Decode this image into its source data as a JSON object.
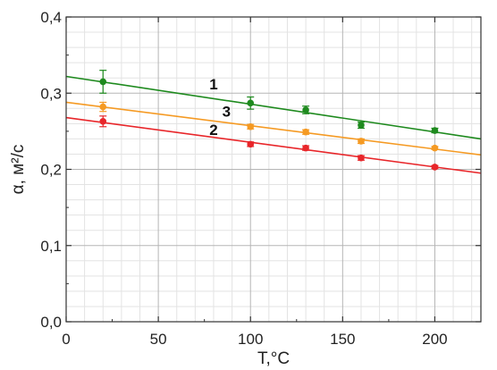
{
  "chart_data": {
    "type": "scatter",
    "xlabel": "T,°C",
    "ylabel": "α, м²/с",
    "xlim": [
      0,
      225
    ],
    "ylim": [
      0,
      0.4
    ],
    "x_ticks": [
      0,
      50,
      100,
      150,
      200
    ],
    "x_tick_labels": [
      "0",
      "50",
      "100",
      "150",
      "200"
    ],
    "y_ticks": [
      0,
      0.1,
      0.2,
      0.3,
      0.4
    ],
    "y_tick_labels": [
      "0,0",
      "0,1",
      "0,2",
      "0,3",
      "0,4"
    ],
    "grid": true,
    "series": [
      {
        "name": "1",
        "color": "#1e8a1e",
        "x": [
          20,
          100,
          130,
          160,
          200
        ],
        "y": [
          0.315,
          0.287,
          0.278,
          0.258,
          0.251
        ],
        "err": [
          0.015,
          0.008,
          0.005,
          0.004,
          0.003
        ],
        "fit": {
          "x": [
            0,
            225
          ],
          "y": [
            0.322,
            0.24
          ]
        },
        "label_at": [
          80,
          0.305
        ]
      },
      {
        "name": "2",
        "color": "#e8262a",
        "x": [
          20,
          100,
          130,
          160,
          200
        ],
        "y": [
          0.263,
          0.233,
          0.228,
          0.215,
          0.203
        ],
        "err": [
          0.007,
          0.003,
          0.003,
          0.003,
          0.002
        ],
        "fit": {
          "x": [
            0,
            225
          ],
          "y": [
            0.268,
            0.195
          ]
        },
        "label_at": [
          80,
          0.245
        ]
      },
      {
        "name": "3",
        "color": "#f59a23",
        "x": [
          20,
          100,
          130,
          160,
          200
        ],
        "y": [
          0.282,
          0.256,
          0.249,
          0.237,
          0.228
        ],
        "err": [
          0.006,
          0.003,
          0.003,
          0.003,
          0.002
        ],
        "fit": {
          "x": [
            0,
            225
          ],
          "y": [
            0.288,
            0.219
          ]
        },
        "label_at": [
          87,
          0.269
        ]
      }
    ]
  }
}
